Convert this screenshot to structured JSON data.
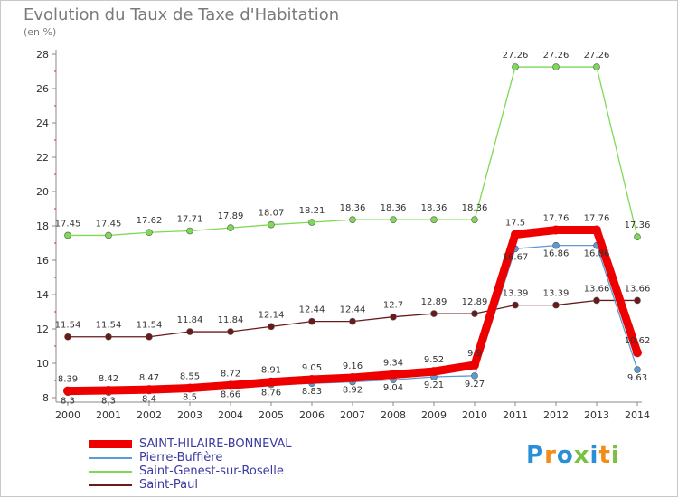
{
  "chart_data": {
    "type": "line",
    "title": "Evolution du Taux de Taxe d'Habitation",
    "subtitle": "(en %)",
    "xlabel": "",
    "ylabel": "",
    "x": [
      "2000",
      "2001",
      "2002",
      "2003",
      "2004",
      "2005",
      "2006",
      "2007",
      "2008",
      "2009",
      "2010",
      "2011",
      "2012",
      "2013",
      "2014"
    ],
    "ylim": [
      8,
      28
    ],
    "yticks": [
      8,
      10,
      12,
      14,
      16,
      18,
      20,
      22,
      24,
      26,
      28
    ],
    "grid": false,
    "legend_position": "bottom-left",
    "series": [
      {
        "name": "SAINT-HILAIRE-BONNEVAL",
        "color": "#ee0000",
        "values": [
          8.39,
          8.42,
          8.47,
          8.55,
          8.72,
          8.91,
          9.05,
          9.16,
          9.34,
          9.52,
          9.9,
          17.5,
          17.76,
          17.76,
          10.62
        ],
        "labels": [
          "8.39",
          "8.42",
          "8.47",
          "8.55",
          "8.72",
          "8.91",
          "9.05",
          "9.16",
          "9.34",
          "9.52",
          "9.9",
          "17.5",
          "17.76",
          "17.76",
          "10.62"
        ]
      },
      {
        "name": "Pierre-Buffière",
        "color": "#5b9bd5",
        "values": [
          8.3,
          8.3,
          8.4,
          8.5,
          8.66,
          8.76,
          8.83,
          8.92,
          9.04,
          9.21,
          9.27,
          16.67,
          16.86,
          16.86,
          9.63
        ],
        "labels": [
          "8.3",
          "8.3",
          "8.4",
          "8.5",
          "8.66",
          "8.76",
          "8.83",
          "8.92",
          "9.04",
          "9.21",
          "9.27",
          "16.67",
          "16.86",
          "16.86",
          "9.63"
        ]
      },
      {
        "name": "Saint-Genest-sur-Roselle",
        "color": "#7ed957",
        "values": [
          17.45,
          17.45,
          17.62,
          17.71,
          17.89,
          18.07,
          18.21,
          18.36,
          18.36,
          18.36,
          18.36,
          27.26,
          27.26,
          27.26,
          17.36
        ],
        "labels": [
          "17.45",
          "17.45",
          "17.62",
          "17.71",
          "17.89",
          "18.07",
          "18.21",
          "18.36",
          "18.36",
          "18.36",
          "18.36",
          "27.26",
          "27.26",
          "27.26",
          "17.36"
        ]
      },
      {
        "name": "Saint-Paul",
        "color": "#6b1a1a",
        "values": [
          11.54,
          11.54,
          11.54,
          11.84,
          11.84,
          12.14,
          12.44,
          12.44,
          12.7,
          12.89,
          12.89,
          13.39,
          13.39,
          13.66,
          13.66
        ],
        "labels": [
          "11.54",
          "11.54",
          "11.54",
          "11.84",
          "11.84",
          "12.14",
          "12.44",
          "12.44",
          "12.7",
          "12.89",
          "12.89",
          "13.39",
          "13.39",
          "13.66",
          "13.66"
        ]
      }
    ]
  },
  "logo": {
    "text": "Proxiti",
    "colors": [
      "#2a8fd6",
      "#f28c1a",
      "#2a8fd6",
      "#7ac143",
      "#2a8fd6",
      "#f28c1a",
      "#7ac143"
    ]
  }
}
